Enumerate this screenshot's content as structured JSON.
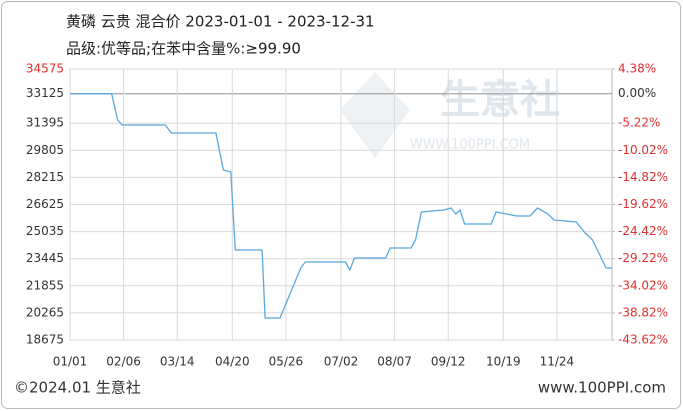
{
  "chart_data": {
    "type": "line",
    "title": "黄磷 云贵 混合价 2023-01-01 - 2023-12-31",
    "subtitle": "品级:优等品;在苯中含量%:≥99.90",
    "footer_left": "©2024.01 生意社",
    "footer_right": "www.100PPI.com",
    "watermark": "生意社",
    "watermark_url": "WWW.100PPI.COM",
    "x": [
      "01/01",
      "01/29",
      "02/02",
      "02/05",
      "03/06",
      "03/10",
      "04/09",
      "04/11",
      "04/14",
      "04/19",
      "04/22",
      "05/10",
      "05/12",
      "05/22",
      "06/05",
      "06/08",
      "07/05",
      "07/08",
      "07/11",
      "08/01",
      "08/04",
      "08/18",
      "08/21",
      "08/25",
      "09/09",
      "09/14",
      "09/17",
      "09/20",
      "09/23",
      "10/11",
      "10/14",
      "10/28",
      "11/06",
      "11/11",
      "11/18",
      "11/22",
      "12/07",
      "12/13",
      "12/18",
      "12/27",
      "12/31"
    ],
    "series": [
      {
        "name": "黄磷",
        "color": "#5aa8dc",
        "values": [
          33125,
          33125,
          31580,
          31290,
          31290,
          30820,
          30820,
          29940,
          28650,
          28530,
          23955,
          23955,
          19965,
          19965,
          22900,
          23250,
          23250,
          22780,
          23485,
          23485,
          24070,
          24070,
          24540,
          26185,
          26300,
          26420,
          26070,
          26300,
          25480,
          25480,
          26185,
          25950,
          25950,
          26420,
          26070,
          25715,
          25600,
          24950,
          24540,
          22900,
          22900
        ]
      }
    ],
    "xlim": [
      "01/01",
      "12/31"
    ],
    "xticks": [
      "01/01",
      "02/06",
      "03/14",
      "04/20",
      "05/26",
      "07/02",
      "08/07",
      "09/12",
      "10/19",
      "11/24"
    ],
    "ylim": [
      18675,
      34575
    ],
    "yticks": [
      34575,
      33125,
      31395,
      29805,
      28215,
      26625,
      25035,
      23445,
      21855,
      20265,
      18675
    ],
    "y2lim": [
      -43.62,
      4.38
    ],
    "y2ticks": [
      {
        "value": 4.38,
        "label": "4.38%"
      },
      {
        "value": 0,
        "label": "0.00%"
      },
      {
        "value": -5.22,
        "label": "-5.22%"
      },
      {
        "value": -10.02,
        "label": "-10.02%"
      },
      {
        "value": -14.82,
        "label": "-14.82%"
      },
      {
        "value": -19.62,
        "label": "-19.62%"
      },
      {
        "value": -24.42,
        "label": "-24.42%"
      },
      {
        "value": -29.22,
        "label": "-29.22%"
      },
      {
        "value": -34.02,
        "label": "-34.02%"
      },
      {
        "value": -38.82,
        "label": "-38.82%"
      },
      {
        "value": -43.62,
        "label": "-43.62%"
      }
    ],
    "grid": true
  }
}
